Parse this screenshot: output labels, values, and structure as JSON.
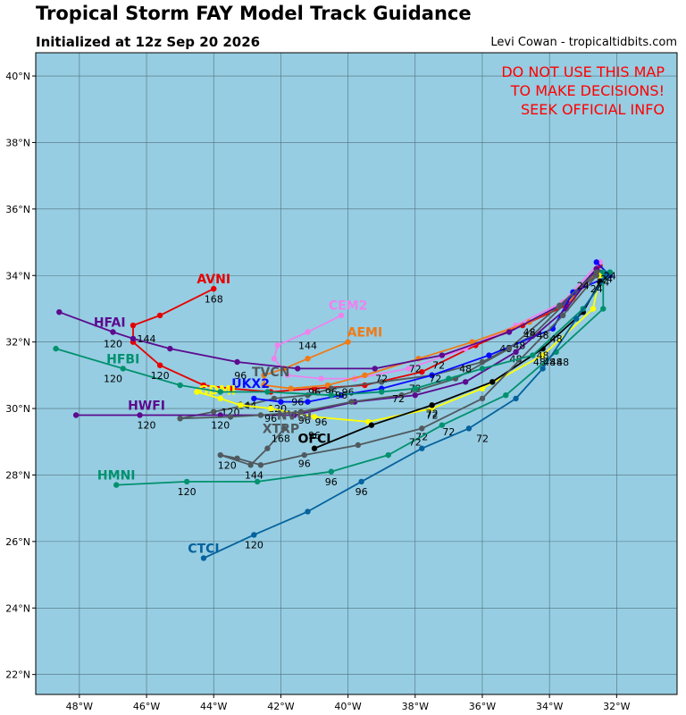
{
  "header": {
    "title": "Tropical Storm FAY Model Track Guidance",
    "subtitle": "Initialized at 12z Sep 20 2026",
    "credit": "Levi Cowan - tropicaltidbits.com"
  },
  "warning": [
    "DO NOT USE THIS MAP",
    "TO MAKE DECISIONS!",
    "SEEK OFFICIAL INFO"
  ],
  "map": {
    "lon_range": [
      -49.3,
      -30.2
    ],
    "lat_range": [
      21.4,
      40.7
    ],
    "lat_ticks": [
      22,
      24,
      26,
      28,
      30,
      32,
      34,
      36,
      38,
      40
    ],
    "lon_ticks": [
      -48,
      -46,
      -44,
      -42,
      -40,
      -38,
      -36,
      -34,
      -32
    ],
    "lat_tick_labels": [
      "22°N",
      "24°N",
      "26°N",
      "28°N",
      "30°N",
      "32°N",
      "34°N",
      "36°N",
      "38°N",
      "40°N"
    ],
    "lon_tick_labels": [
      "48°W",
      "46°W",
      "44°W",
      "42°W",
      "40°W",
      "38°W",
      "36°W",
      "34°W",
      "32°W"
    ],
    "ocean_color": "#96cde2",
    "grid_color": "#52707d"
  },
  "tracks": [
    {
      "name": "AVNI",
      "color": "#e60000",
      "points": [
        [
          -32.5,
          34.3
        ],
        [
          -33.5,
          33.1
        ],
        [
          -34.8,
          32.5
        ],
        [
          -36.2,
          31.9
        ],
        [
          -37.8,
          31.1
        ],
        [
          -39.5,
          30.7
        ],
        [
          -41.0,
          30.6
        ],
        [
          -42.3,
          30.5
        ],
        [
          -43.5,
          30.6
        ],
        [
          -44.3,
          30.7
        ],
        [
          -45.6,
          31.3
        ],
        [
          -46.4,
          32.0
        ],
        [
          -46.4,
          32.5
        ],
        [
          -45.6,
          32.8
        ],
        [
          -44.0,
          33.6
        ]
      ],
      "labels": [
        [
          -40.0,
          30.5,
          "96"
        ],
        [
          -44.0,
          33.3,
          "168"
        ]
      ],
      "name_pos": [
        -44.0,
        33.9
      ]
    },
    {
      "name": "CEM2",
      "color": "#ee82ee",
      "points": [
        [
          -32.5,
          34.4
        ],
        [
          -33.6,
          33.2
        ],
        [
          -35.0,
          32.5
        ],
        [
          -36.5,
          31.8
        ],
        [
          -38.2,
          31.2
        ],
        [
          -39.8,
          30.9
        ],
        [
          -40.8,
          30.9
        ],
        [
          -41.8,
          31.0
        ],
        [
          -42.2,
          31.5
        ],
        [
          -42.1,
          31.9
        ],
        [
          -41.2,
          32.3
        ],
        [
          -40.2,
          32.8
        ]
      ],
      "labels": [
        [
          -41.2,
          31.9,
          "144"
        ]
      ],
      "name_pos": [
        -40.0,
        33.1
      ]
    },
    {
      "name": "AEMI",
      "color": "#f07a16",
      "points": [
        [
          -32.6,
          34.1
        ],
        [
          -33.3,
          33.3
        ],
        [
          -34.6,
          32.6
        ],
        [
          -36.3,
          32.0
        ],
        [
          -37.9,
          31.5
        ],
        [
          -39.5,
          31.0
        ],
        [
          -40.6,
          30.7
        ],
        [
          -41.7,
          30.6
        ],
        [
          -42.5,
          30.7
        ],
        [
          -42.5,
          31.0
        ],
        [
          -41.9,
          31.2
        ],
        [
          -41.2,
          31.5
        ],
        [
          -40.0,
          32.0
        ]
      ],
      "labels": [
        [
          -34.6,
          32.2,
          "48"
        ],
        [
          -38.0,
          31.2,
          "72"
        ]
      ],
      "name_pos": [
        -39.5,
        32.3
      ]
    },
    {
      "name": "HFAI",
      "color": "#5c0a8f",
      "points": [
        [
          -32.6,
          34.2
        ],
        [
          -33.5,
          33.2
        ],
        [
          -35.2,
          32.3
        ],
        [
          -37.2,
          31.6
        ],
        [
          -39.2,
          31.2
        ],
        [
          -41.5,
          31.2
        ],
        [
          -43.3,
          31.4
        ],
        [
          -45.3,
          31.8
        ],
        [
          -46.4,
          32.1
        ],
        [
          -47.0,
          32.3
        ],
        [
          -48.6,
          32.9
        ]
      ],
      "labels": [
        [
          -37.3,
          31.3,
          "72"
        ],
        [
          -43.2,
          31.0,
          "96"
        ],
        [
          -46.0,
          32.1,
          "144"
        ],
        [
          -47.0,
          31.95,
          "120"
        ]
      ],
      "name_pos": [
        -47.1,
        32.6
      ]
    },
    {
      "name": "TVCN",
      "color": "#50595e",
      "points": [
        [
          -32.5,
          34.1
        ],
        [
          -33.2,
          33.5
        ],
        [
          -34.5,
          32.2
        ],
        [
          -36.0,
          31.4
        ],
        [
          -37.5,
          31.0
        ],
        [
          -39.0,
          30.8
        ],
        [
          -40.5,
          30.6
        ],
        [
          -41.2,
          30.4
        ],
        [
          -42.2,
          30.3
        ],
        [
          -43.0,
          30.1
        ],
        [
          -44.0,
          29.9
        ],
        [
          -45.0,
          29.7
        ]
      ],
      "labels": [
        [
          -35.0,
          31.5,
          "48"
        ],
        [
          -39.0,
          30.9,
          "72"
        ],
        [
          -41.0,
          30.5,
          "96"
        ],
        [
          -42.1,
          30.0,
          "120"
        ]
      ],
      "name_pos": [
        -42.3,
        31.1
      ]
    },
    {
      "name": "UKX2",
      "color": "#0a0aff",
      "points": [
        [
          -32.6,
          34.4
        ],
        [
          -32.2,
          34.0
        ],
        [
          -33.3,
          33.5
        ],
        [
          -33.9,
          32.4
        ],
        [
          -35.8,
          31.6
        ],
        [
          -37.5,
          31.0
        ],
        [
          -39.0,
          30.6
        ],
        [
          -40.2,
          30.4
        ],
        [
          -41.2,
          30.2
        ],
        [
          -42.0,
          30.2
        ],
        [
          -42.8,
          30.3
        ]
      ],
      "labels": [
        [
          -35.3,
          31.8,
          "48"
        ],
        [
          -38.0,
          30.6,
          "72"
        ],
        [
          -40.5,
          30.5,
          "96"
        ],
        [
          -43.0,
          30.1,
          "144"
        ]
      ],
      "name_pos": [
        -42.9,
        30.75
      ]
    },
    {
      "name": "GDMI",
      "color": "#ffff00",
      "points": [
        [
          -32.5,
          34.0
        ],
        [
          -32.7,
          33.0
        ],
        [
          -34.2,
          31.6
        ],
        [
          -36.0,
          30.6
        ],
        [
          -37.5,
          30.0
        ],
        [
          -39.4,
          29.6
        ],
        [
          -41.0,
          29.75
        ],
        [
          -42.3,
          30.0
        ],
        [
          -43.2,
          30.1
        ],
        [
          -43.8,
          30.3
        ],
        [
          -44.5,
          30.5
        ]
      ],
      "labels": [
        [
          -34.3,
          31.4,
          "48"
        ],
        [
          -37.5,
          29.85,
          "72"
        ],
        [
          -40.8,
          29.6,
          "96"
        ],
        [
          -43.5,
          29.9,
          "120"
        ]
      ],
      "name_pos": [
        -43.9,
        30.55
      ]
    },
    {
      "name": "HWFI",
      "color": "#5c0a8f",
      "points": [
        [
          -32.6,
          34.2
        ],
        [
          -33.5,
          33.0
        ],
        [
          -35.0,
          31.7
        ],
        [
          -36.5,
          30.8
        ],
        [
          -38.0,
          30.4
        ],
        [
          -39.8,
          30.2
        ],
        [
          -41.6,
          29.8
        ],
        [
          -43.8,
          29.8
        ],
        [
          -46.2,
          29.8
        ],
        [
          -48.1,
          29.8
        ]
      ],
      "labels": [
        [
          -46.0,
          29.5,
          "120"
        ],
        [
          -43.8,
          29.5,
          "120"
        ]
      ],
      "name_pos": [
        -46.0,
        30.1
      ]
    },
    {
      "name": "NVGI",
      "color": "#50595e",
      "points": [
        [
          -32.6,
          34.1
        ],
        [
          -33.7,
          33.1
        ],
        [
          -35.2,
          31.8
        ],
        [
          -36.8,
          30.9
        ],
        [
          -38.4,
          30.4
        ],
        [
          -39.9,
          30.2
        ],
        [
          -41.4,
          29.9
        ],
        [
          -42.6,
          29.8
        ],
        [
          -43.5,
          29.75
        ],
        [
          -45.0,
          29.7
        ]
      ],
      "labels": [
        [
          -38.5,
          30.3,
          "72"
        ],
        [
          -42.3,
          29.7,
          "96"
        ],
        [
          -41.3,
          29.65,
          "96"
        ]
      ],
      "name_pos": [
        -41.6,
        29.8
      ]
    },
    {
      "name": "OFCI",
      "color": "#000000",
      "points": [
        [
          -32.5,
          33.8
        ],
        [
          -33.0,
          32.9
        ],
        [
          -34.2,
          31.8
        ],
        [
          -35.7,
          30.8
        ],
        [
          -37.5,
          30.1
        ],
        [
          -39.3,
          29.5
        ],
        [
          -41.0,
          28.8
        ]
      ],
      "labels": [
        [
          -37.5,
          29.8,
          "72"
        ],
        [
          -41.0,
          29.2,
          "96"
        ]
      ],
      "name_pos": [
        -41.0,
        29.1
      ]
    },
    {
      "name": "XTRP",
      "color": "#50595e",
      "points": [
        [
          -32.6,
          34.0
        ],
        [
          -33.6,
          32.8
        ],
        [
          -36.0,
          30.3
        ],
        [
          -37.8,
          29.4
        ],
        [
          -39.7,
          28.9
        ],
        [
          -41.3,
          28.6
        ],
        [
          -42.6,
          28.3
        ],
        [
          -43.3,
          28.5
        ],
        [
          -43.8,
          28.6
        ],
        [
          -42.9,
          28.3
        ],
        [
          -42.4,
          28.8
        ],
        [
          -41.9,
          29.4
        ]
      ],
      "labels": [
        [
          -37.8,
          29.15,
          "72"
        ],
        [
          -41.3,
          28.35,
          "96"
        ],
        [
          -43.6,
          28.3,
          "120"
        ],
        [
          -42.8,
          28.0,
          "144"
        ],
        [
          -42.0,
          29.1,
          "168"
        ]
      ],
      "name_pos": [
        -42.0,
        29.4
      ]
    },
    {
      "name": "HMNI",
      "color": "#00916e",
      "points": [
        [
          -32.4,
          34.1
        ],
        [
          -32.4,
          33.0
        ],
        [
          -33.8,
          31.7
        ],
        [
          -35.3,
          30.4
        ],
        [
          -37.2,
          29.5
        ],
        [
          -38.8,
          28.6
        ],
        [
          -40.5,
          28.1
        ],
        [
          -42.7,
          27.8
        ],
        [
          -44.8,
          27.8
        ],
        [
          -46.9,
          27.7
        ]
      ],
      "labels": [
        [
          -37.0,
          29.3,
          "72"
        ],
        [
          -38.0,
          29.0,
          "72"
        ],
        [
          -40.5,
          27.8,
          "96"
        ],
        [
          -44.8,
          27.5,
          "120"
        ]
      ],
      "name_pos": [
        -46.9,
        28.0
      ]
    },
    {
      "name": "HFBI",
      "color": "#00916e",
      "points": [
        [
          -32.2,
          34.1
        ],
        [
          -33.0,
          33.0
        ],
        [
          -34.5,
          31.6
        ],
        [
          -36.0,
          31.2
        ],
        [
          -37.0,
          30.9
        ],
        [
          -38.0,
          30.6
        ],
        [
          -39.0,
          30.5
        ],
        [
          -40.5,
          30.4
        ],
        [
          -42.4,
          30.5
        ],
        [
          -43.8,
          30.5
        ],
        [
          -45.0,
          30.7
        ],
        [
          -46.7,
          31.2
        ],
        [
          -48.7,
          31.8
        ]
      ],
      "labels": [
        [
          -33.8,
          31.4,
          "48"
        ],
        [
          -47.0,
          30.9,
          "120"
        ],
        [
          -45.6,
          31.0,
          "120"
        ]
      ],
      "name_pos": [
        -46.7,
        31.5
      ]
    },
    {
      "name": "CTCI",
      "color": "#05629d",
      "points": [
        [
          -32.3,
          34.0
        ],
        [
          -33.2,
          32.7
        ],
        [
          -34.2,
          31.2
        ],
        [
          -35.0,
          30.3
        ],
        [
          -36.4,
          29.4
        ],
        [
          -37.8,
          28.8
        ],
        [
          -39.6,
          27.8
        ],
        [
          -41.2,
          26.9
        ],
        [
          -42.8,
          26.2
        ],
        [
          -44.3,
          25.5
        ]
      ],
      "labels": [
        [
          -36.0,
          29.1,
          "72"
        ],
        [
          -39.6,
          27.5,
          "96"
        ],
        [
          -42.8,
          25.9,
          "120"
        ]
      ],
      "name_pos": [
        -44.3,
        25.8
      ]
    }
  ],
  "cluster_labels": [
    [
      -32.2,
      34.0,
      "24"
    ],
    [
      -32.4,
      33.8,
      "24"
    ],
    [
      -32.3,
      33.9,
      "24"
    ],
    [
      -33.0,
      33.7,
      "24"
    ],
    [
      -32.6,
      33.6,
      "24"
    ],
    [
      -34.2,
      32.2,
      "48"
    ],
    [
      -34.6,
      32.3,
      "48"
    ],
    [
      -33.8,
      32.1,
      "48"
    ],
    [
      -34.9,
      31.9,
      "48"
    ],
    [
      -34.2,
      31.6,
      "48"
    ],
    [
      -34.0,
      31.4,
      "48"
    ],
    [
      -33.6,
      31.4,
      "48"
    ],
    [
      -37.4,
      30.9,
      "72"
    ],
    [
      -36.5,
      31.2,
      "48"
    ],
    [
      -40.2,
      30.4,
      "96"
    ],
    [
      -41.5,
      30.2,
      "96"
    ]
  ]
}
